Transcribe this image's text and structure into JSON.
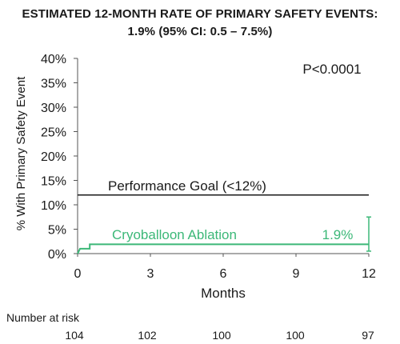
{
  "chart_data": {
    "type": "line",
    "title": "ESTIMATED 12-MONTH RATE OF PRIMARY SAFETY EVENTS:",
    "subtitle": "1.9% (95% CI: 0.5 – 7.5%)",
    "xlabel": "Months",
    "ylabel": "% With Primary Safety Event",
    "xlim": [
      0,
      12
    ],
    "ylim": [
      0,
      40
    ],
    "xticks": [
      0,
      3,
      6,
      9,
      12
    ],
    "xtick_labels": [
      "0",
      "3",
      "6",
      "9",
      "12"
    ],
    "yticks": [
      0,
      5,
      10,
      15,
      20,
      25,
      30,
      35,
      40
    ],
    "ytick_labels": [
      "0%",
      "5%",
      "10%",
      "15%",
      "20%",
      "25%",
      "30%",
      "35%",
      "40%"
    ],
    "grid": false,
    "annotation": "P<0.0001",
    "reference_line": {
      "label": "Performance Goal (<12%)",
      "value": 12,
      "color": "#1a1a1a"
    },
    "series": [
      {
        "name": "Cryoballoon Ablation",
        "color": "#3cb878",
        "step": true,
        "points": [
          [
            0,
            0
          ],
          [
            0.1,
            1.0
          ],
          [
            0.5,
            1.0
          ],
          [
            0.5,
            1.9
          ],
          [
            12,
            1.9
          ]
        ],
        "end_label": "1.9%",
        "error_bar": {
          "x": 12,
          "lower": 0.5,
          "upper": 7.5
        }
      }
    ],
    "number_at_risk": {
      "label": "Number at risk",
      "x": [
        0,
        3,
        6,
        9,
        12
      ],
      "values": [
        "104",
        "102",
        "100",
        "100",
        "97"
      ]
    }
  }
}
